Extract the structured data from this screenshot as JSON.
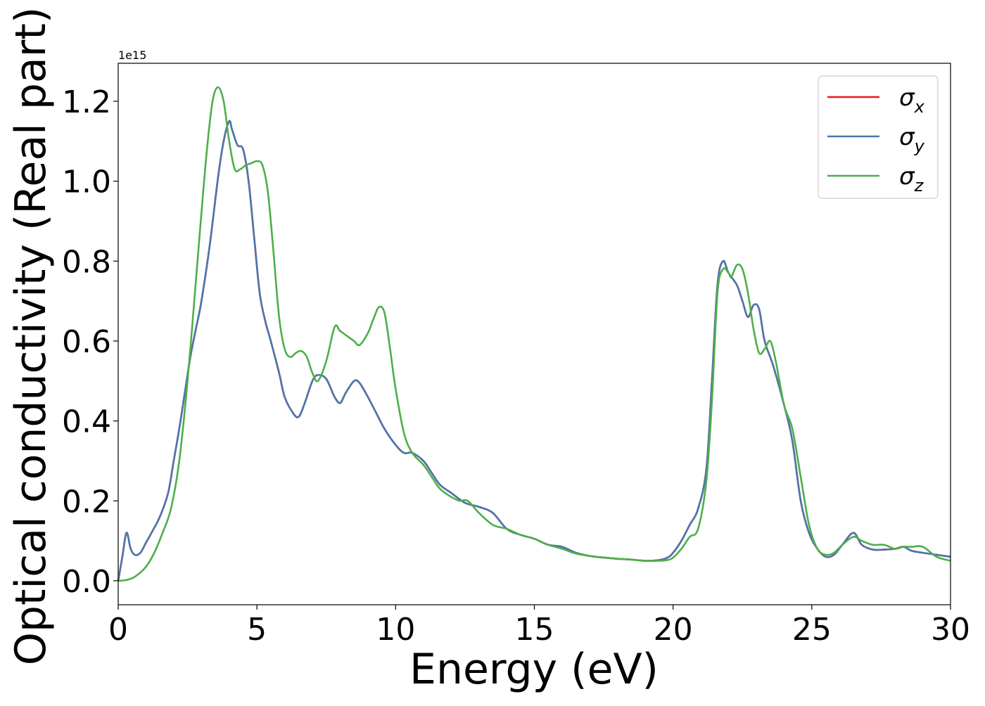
{
  "chart_data": {
    "type": "line",
    "xlabel": "Energy (eV)",
    "ylabel": "Optical conductivity (Real part)",
    "y_offset_text": "1e15",
    "xlim": [
      0,
      30
    ],
    "ylim": [
      -0.06,
      1.295
    ],
    "x_ticks": [
      0,
      5,
      10,
      15,
      20,
      25,
      30
    ],
    "x_tick_labels": [
      "0",
      "5",
      "10",
      "15",
      "20",
      "25",
      "30"
    ],
    "y_ticks": [
      0.0,
      0.2,
      0.4,
      0.6,
      0.8,
      1.0,
      1.2
    ],
    "y_tick_labels": [
      "0.0",
      "0.2",
      "0.4",
      "0.6",
      "0.8",
      "1.0",
      "1.2"
    ],
    "grid": false,
    "legend_position": "top-right",
    "series": [
      {
        "name": "σx",
        "legend_symbol": "σ",
        "legend_subscript": "x",
        "color": "#e41a1c",
        "x": [
          0,
          0.15,
          0.3,
          0.45,
          0.6,
          0.8,
          1.0,
          1.2,
          1.5,
          1.8,
          2.0,
          2.2,
          2.4,
          2.6,
          2.8,
          3.0,
          3.3,
          3.6,
          3.8,
          4.0,
          4.1,
          4.3,
          4.5,
          4.7,
          4.9,
          5.1,
          5.3,
          5.5,
          5.8,
          6.0,
          6.3,
          6.5,
          6.7,
          7.0,
          7.2,
          7.5,
          7.8,
          8.0,
          8.2,
          8.5,
          8.7,
          9.0,
          9.3,
          9.6,
          10.0,
          10.3,
          10.6,
          11.0,
          11.3,
          11.6,
          12.0,
          12.5,
          13.0,
          13.5,
          14.0,
          14.5,
          15.0,
          15.5,
          16.0,
          16.5,
          17.0,
          17.5,
          18.0,
          18.5,
          19.0,
          19.5,
          19.8,
          20.0,
          20.3,
          20.6,
          20.9,
          21.2,
          21.4,
          21.6,
          21.8,
          22.0,
          22.3,
          22.5,
          22.7,
          22.9,
          23.1,
          23.3,
          23.6,
          24.0,
          24.3,
          24.6,
          24.9,
          25.2,
          25.5,
          25.8,
          26.1,
          26.5,
          26.8,
          27.2,
          27.6,
          28.0,
          28.3,
          28.6,
          29.0,
          29.5,
          30.0
        ],
        "values": [
          0.0,
          0.06,
          0.12,
          0.08,
          0.065,
          0.07,
          0.095,
          0.12,
          0.16,
          0.22,
          0.3,
          0.38,
          0.47,
          0.56,
          0.63,
          0.7,
          0.84,
          1.01,
          1.1,
          1.15,
          1.13,
          1.09,
          1.08,
          1.0,
          0.86,
          0.72,
          0.65,
          0.6,
          0.52,
          0.46,
          0.42,
          0.41,
          0.44,
          0.5,
          0.515,
          0.505,
          0.46,
          0.445,
          0.47,
          0.5,
          0.495,
          0.46,
          0.42,
          0.38,
          0.34,
          0.32,
          0.32,
          0.3,
          0.27,
          0.24,
          0.22,
          0.195,
          0.185,
          0.17,
          0.13,
          0.115,
          0.105,
          0.09,
          0.085,
          0.07,
          0.062,
          0.058,
          0.055,
          0.053,
          0.05,
          0.052,
          0.058,
          0.07,
          0.1,
          0.14,
          0.18,
          0.28,
          0.5,
          0.74,
          0.8,
          0.77,
          0.74,
          0.7,
          0.66,
          0.69,
          0.68,
          0.6,
          0.54,
          0.44,
          0.35,
          0.2,
          0.12,
          0.08,
          0.06,
          0.065,
          0.09,
          0.12,
          0.09,
          0.078,
          0.078,
          0.08,
          0.085,
          0.075,
          0.07,
          0.065,
          0.06
        ]
      },
      {
        "name": "σy",
        "legend_symbol": "σ",
        "legend_subscript": "y",
        "color": "#4a77ad",
        "x": [
          0,
          0.15,
          0.3,
          0.45,
          0.6,
          0.8,
          1.0,
          1.2,
          1.5,
          1.8,
          2.0,
          2.2,
          2.4,
          2.6,
          2.8,
          3.0,
          3.3,
          3.6,
          3.8,
          4.0,
          4.1,
          4.3,
          4.5,
          4.7,
          4.9,
          5.1,
          5.3,
          5.5,
          5.8,
          6.0,
          6.3,
          6.5,
          6.7,
          7.0,
          7.2,
          7.5,
          7.8,
          8.0,
          8.2,
          8.5,
          8.7,
          9.0,
          9.3,
          9.6,
          10.0,
          10.3,
          10.6,
          11.0,
          11.3,
          11.6,
          12.0,
          12.5,
          13.0,
          13.5,
          14.0,
          14.5,
          15.0,
          15.5,
          16.0,
          16.5,
          17.0,
          17.5,
          18.0,
          18.5,
          19.0,
          19.5,
          19.8,
          20.0,
          20.3,
          20.6,
          20.9,
          21.2,
          21.4,
          21.6,
          21.8,
          22.0,
          22.3,
          22.5,
          22.7,
          22.9,
          23.1,
          23.3,
          23.6,
          24.0,
          24.3,
          24.6,
          24.9,
          25.2,
          25.5,
          25.8,
          26.1,
          26.5,
          26.8,
          27.2,
          27.6,
          28.0,
          28.3,
          28.6,
          29.0,
          29.5,
          30.0
        ],
        "values": [
          0.0,
          0.06,
          0.12,
          0.08,
          0.065,
          0.07,
          0.095,
          0.12,
          0.16,
          0.22,
          0.3,
          0.38,
          0.47,
          0.56,
          0.63,
          0.7,
          0.84,
          1.01,
          1.1,
          1.15,
          1.13,
          1.09,
          1.08,
          1.0,
          0.86,
          0.72,
          0.65,
          0.6,
          0.52,
          0.46,
          0.42,
          0.41,
          0.44,
          0.5,
          0.515,
          0.505,
          0.46,
          0.445,
          0.47,
          0.5,
          0.495,
          0.46,
          0.42,
          0.38,
          0.34,
          0.32,
          0.32,
          0.3,
          0.27,
          0.24,
          0.22,
          0.195,
          0.185,
          0.17,
          0.13,
          0.115,
          0.105,
          0.09,
          0.085,
          0.07,
          0.062,
          0.058,
          0.055,
          0.053,
          0.05,
          0.052,
          0.058,
          0.07,
          0.1,
          0.14,
          0.18,
          0.28,
          0.5,
          0.74,
          0.8,
          0.77,
          0.74,
          0.7,
          0.66,
          0.69,
          0.68,
          0.6,
          0.54,
          0.44,
          0.35,
          0.2,
          0.12,
          0.08,
          0.06,
          0.065,
          0.09,
          0.12,
          0.09,
          0.078,
          0.078,
          0.08,
          0.085,
          0.075,
          0.07,
          0.065,
          0.06
        ]
      },
      {
        "name": "σz",
        "legend_symbol": "σ",
        "legend_subscript": "z",
        "color": "#4daf4a",
        "x": [
          0,
          0.3,
          0.6,
          1.0,
          1.3,
          1.6,
          1.9,
          2.2,
          2.5,
          2.8,
          3.0,
          3.2,
          3.4,
          3.6,
          3.8,
          4.0,
          4.2,
          4.4,
          4.6,
          4.8,
          5.0,
          5.2,
          5.4,
          5.6,
          5.8,
          6.0,
          6.2,
          6.4,
          6.6,
          6.8,
          7.0,
          7.2,
          7.5,
          7.8,
          8.0,
          8.3,
          8.5,
          8.7,
          9.0,
          9.2,
          9.4,
          9.6,
          9.8,
          10.0,
          10.3,
          10.6,
          11.0,
          11.3,
          11.6,
          12.0,
          12.3,
          12.6,
          13.0,
          13.5,
          14.0,
          14.5,
          15.0,
          15.5,
          16.0,
          16.5,
          17.0,
          17.5,
          18.0,
          18.5,
          19.0,
          19.5,
          19.8,
          20.0,
          20.3,
          20.6,
          20.9,
          21.2,
          21.4,
          21.6,
          21.8,
          22.0,
          22.1,
          22.3,
          22.5,
          22.7,
          22.9,
          23.1,
          23.3,
          23.5,
          23.7,
          24.0,
          24.3,
          24.6,
          24.9,
          25.2,
          25.5,
          25.8,
          26.1,
          26.5,
          26.8,
          27.2,
          27.6,
          28.0,
          28.3,
          28.6,
          29.0,
          29.5,
          30.0
        ],
        "values": [
          0.0,
          0.002,
          0.01,
          0.035,
          0.07,
          0.12,
          0.18,
          0.3,
          0.5,
          0.75,
          0.92,
          1.08,
          1.2,
          1.235,
          1.2,
          1.1,
          1.03,
          1.03,
          1.04,
          1.045,
          1.05,
          1.04,
          0.97,
          0.82,
          0.66,
          0.58,
          0.56,
          0.57,
          0.575,
          0.56,
          0.52,
          0.5,
          0.55,
          0.635,
          0.625,
          0.61,
          0.6,
          0.59,
          0.62,
          0.655,
          0.685,
          0.67,
          0.58,
          0.48,
          0.37,
          0.32,
          0.29,
          0.26,
          0.23,
          0.21,
          0.2,
          0.2,
          0.17,
          0.14,
          0.13,
          0.115,
          0.105,
          0.09,
          0.08,
          0.068,
          0.062,
          0.058,
          0.055,
          0.053,
          0.05,
          0.05,
          0.052,
          0.058,
          0.08,
          0.11,
          0.13,
          0.25,
          0.45,
          0.72,
          0.78,
          0.77,
          0.76,
          0.79,
          0.78,
          0.72,
          0.63,
          0.57,
          0.58,
          0.6,
          0.55,
          0.44,
          0.38,
          0.26,
          0.14,
          0.08,
          0.065,
          0.07,
          0.09,
          0.11,
          0.1,
          0.09,
          0.09,
          0.08,
          0.085,
          0.085,
          0.085,
          0.06,
          0.05
        ]
      }
    ]
  }
}
